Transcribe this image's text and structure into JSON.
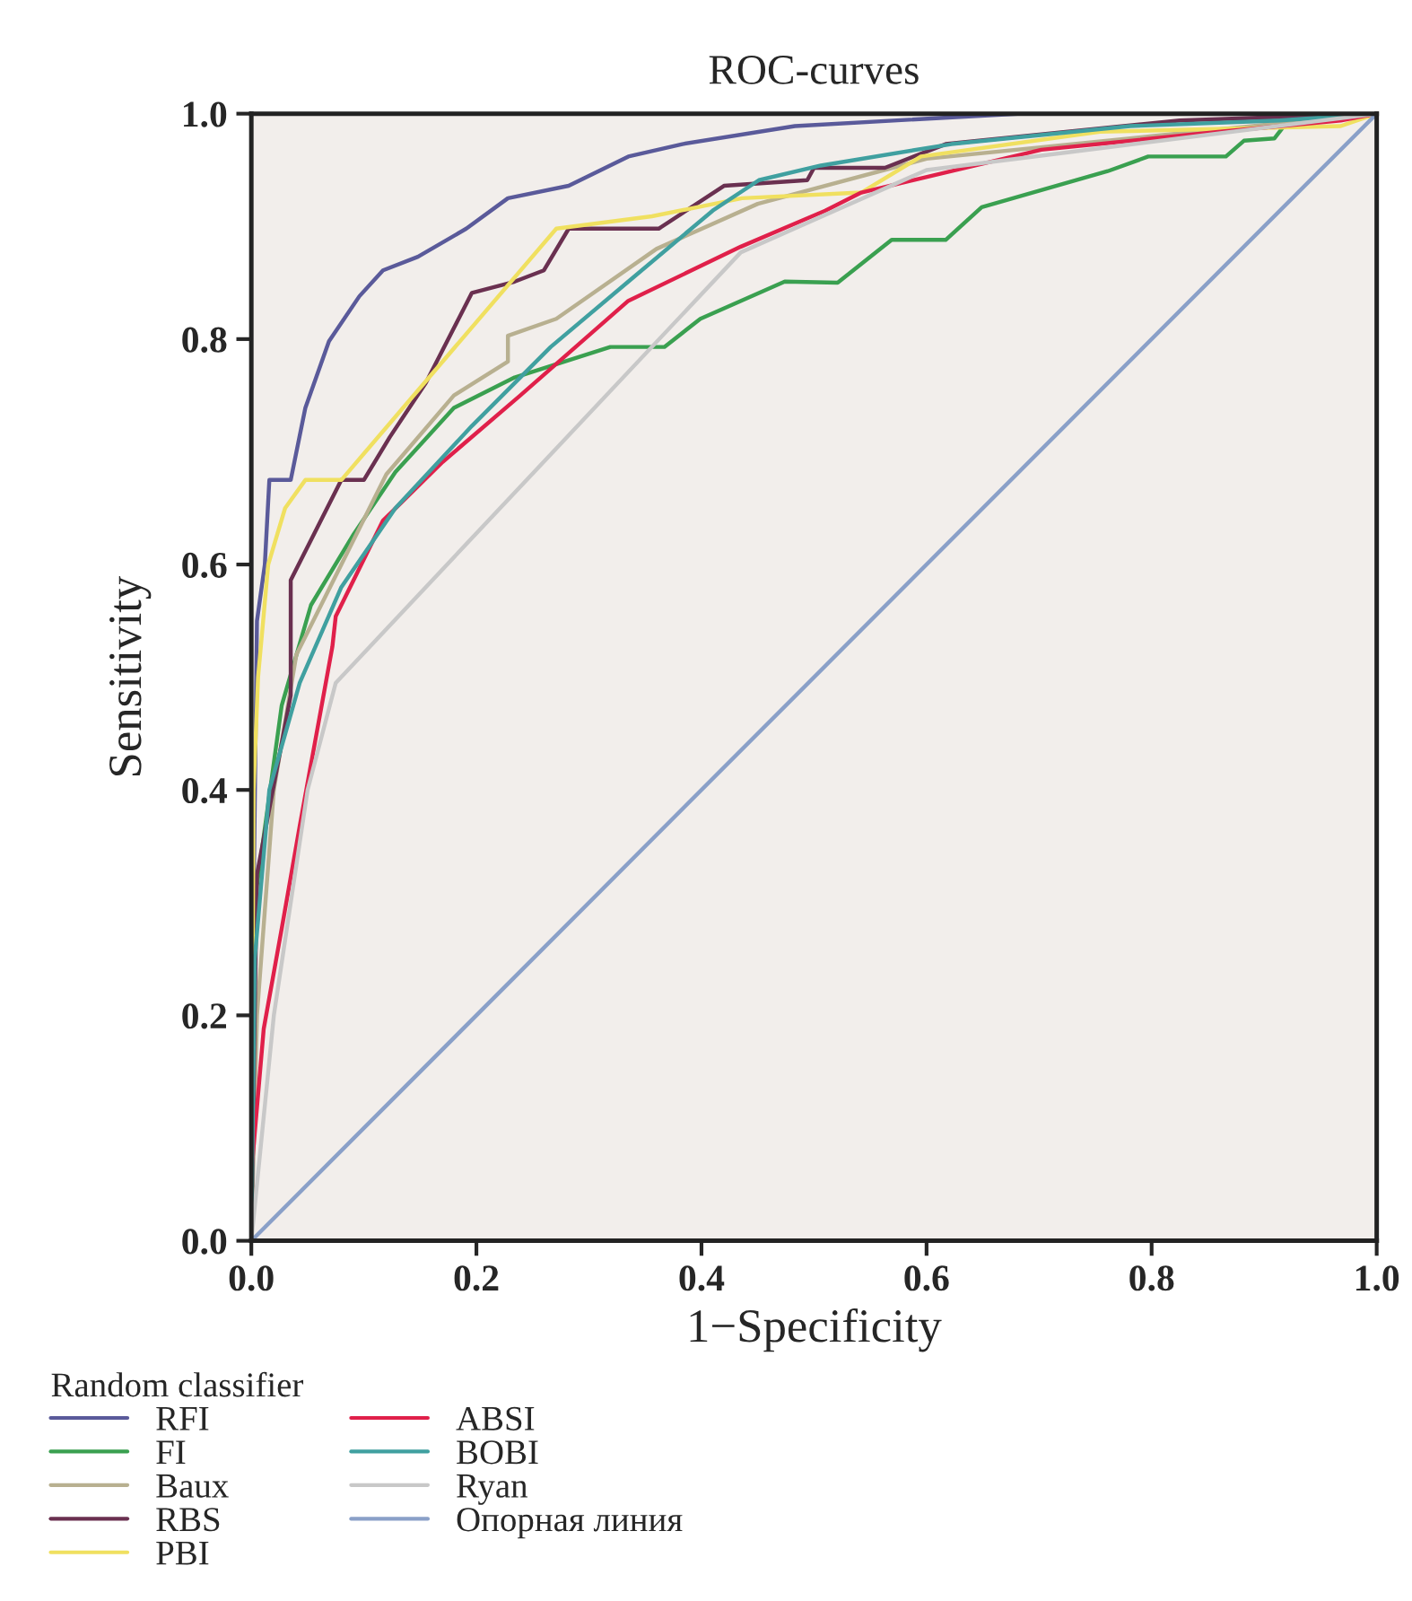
{
  "chart_data": {
    "type": "line",
    "title": "ROC-curves",
    "xlabel": "1−Specificity",
    "ylabel": "Sensitivity",
    "legend_title": "Random classifier",
    "xlim": [
      0.0,
      1.0
    ],
    "ylim": [
      0.0,
      1.0
    ],
    "xticks": [
      {
        "value": 0,
        "label": "0.0"
      },
      0.2,
      0.4,
      0.6,
      0.8,
      {
        "value": 1,
        "label": "1.0"
      }
    ],
    "yticks": [
      {
        "value": 0,
        "label": "0.0"
      },
      0.2,
      0.4,
      0.6,
      0.8,
      {
        "value": 1,
        "label": "1.0"
      }
    ],
    "grid": false,
    "legend": "bottom left",
    "line_style": "solid",
    "marker": "none",
    "series": [
      {
        "name": "RFI",
        "color": "#5a5a9a",
        "x": [
          0,
          0.002,
          0.005,
          0.012,
          0.016,
          0.035,
          0.048,
          0.069,
          0.096,
          0.117,
          0.148,
          0.191,
          0.228,
          0.282,
          0.335,
          0.383,
          0.483,
          0.681,
          1.0
        ],
        "values": [
          0,
          0.3,
          0.55,
          0.6,
          0.675,
          0.675,
          0.739,
          0.798,
          0.838,
          0.861,
          0.873,
          0.898,
          0.925,
          0.936,
          0.962,
          0.973,
          0.989,
          1.0,
          1.0
        ]
      },
      {
        "name": "FI",
        "color": "#3aa050",
        "x": [
          0,
          0.003,
          0.005,
          0.027,
          0.053,
          0.091,
          0.128,
          0.18,
          0.234,
          0.319,
          0.367,
          0.399,
          0.474,
          0.521,
          0.569,
          0.617,
          0.649,
          0.761,
          0.797,
          0.866,
          0.882,
          0.909,
          0.92,
          1.0
        ],
        "values": [
          0,
          0.25,
          0.315,
          0.475,
          0.564,
          0.627,
          0.682,
          0.739,
          0.766,
          0.793,
          0.793,
          0.818,
          0.851,
          0.85,
          0.888,
          0.888,
          0.917,
          0.949,
          0.962,
          0.962,
          0.976,
          0.978,
          0.992,
          1.0
        ]
      },
      {
        "name": "Baux",
        "color": "#b8b090",
        "x": [
          0,
          0.005,
          0.02,
          0.04,
          0.08,
          0.12,
          0.18,
          0.228,
          0.228,
          0.271,
          0.36,
          0.45,
          0.6,
          0.8,
          1.0
        ],
        "values": [
          0,
          0.2,
          0.4,
          0.52,
          0.6,
          0.68,
          0.75,
          0.78,
          0.803,
          0.818,
          0.88,
          0.92,
          0.96,
          0.98,
          1.0
        ]
      },
      {
        "name": "RBS",
        "color": "#6a3050",
        "x": [
          0,
          0.003,
          0.005,
          0.035,
          0.035,
          0.08,
          0.1,
          0.123,
          0.155,
          0.196,
          0.234,
          0.26,
          0.282,
          0.362,
          0.42,
          0.494,
          0.5,
          0.563,
          0.617,
          0.825,
          1.0
        ],
        "values": [
          0,
          0.2,
          0.325,
          0.484,
          0.586,
          0.675,
          0.675,
          0.713,
          0.761,
          0.841,
          0.851,
          0.861,
          0.898,
          0.898,
          0.936,
          0.941,
          0.952,
          0.952,
          0.973,
          0.994,
          1.0
        ]
      },
      {
        "name": "PBI",
        "color": "#f0e060",
        "x": [
          0,
          0.002,
          0.006,
          0.015,
          0.03,
          0.048,
          0.08,
          0.271,
          0.356,
          0.436,
          0.542,
          0.595,
          0.754,
          0.968,
          1.0
        ],
        "values": [
          0,
          0.4,
          0.5,
          0.6,
          0.65,
          0.675,
          0.675,
          0.898,
          0.909,
          0.925,
          0.93,
          0.962,
          0.984,
          0.989,
          1.0
        ]
      },
      {
        "name": "ABSI",
        "color": "#e0204a",
        "x": [
          0,
          0.0,
          0.011,
          0.027,
          0.043,
          0.072,
          0.075,
          0.117,
          0.17,
          0.239,
          0.335,
          0.435,
          0.51,
          0.542,
          0.702,
          0.861,
          0.968,
          1.0
        ],
        "values": [
          0,
          0.06,
          0.188,
          0.277,
          0.368,
          0.527,
          0.554,
          0.639,
          0.691,
          0.75,
          0.834,
          0.882,
          0.914,
          0.93,
          0.968,
          0.984,
          0.994,
          1.0
        ]
      },
      {
        "name": "BOBI",
        "color": "#40a0a0",
        "x": [
          0,
          0.003,
          0.016,
          0.043,
          0.08,
          0.128,
          0.196,
          0.266,
          0.335,
          0.41,
          0.451,
          0.506,
          0.622,
          0.781,
          0.914,
          1.0
        ],
        "values": [
          0,
          0.25,
          0.4,
          0.495,
          0.58,
          0.65,
          0.723,
          0.793,
          0.851,
          0.914,
          0.941,
          0.954,
          0.973,
          0.989,
          0.994,
          1.0
        ]
      },
      {
        "name": "Ryan",
        "color": "#c8c8c8",
        "x": [
          0,
          0.02,
          0.05,
          0.075,
          0.435,
          0.6,
          1.0
        ],
        "values": [
          0,
          0.2,
          0.4,
          0.495,
          0.877,
          0.95,
          1.0
        ]
      },
      {
        "name": "Опорная линия",
        "color": "#8aa0c8",
        "x": [
          0,
          1.0
        ],
        "values": [
          0,
          1.0
        ]
      }
    ]
  }
}
